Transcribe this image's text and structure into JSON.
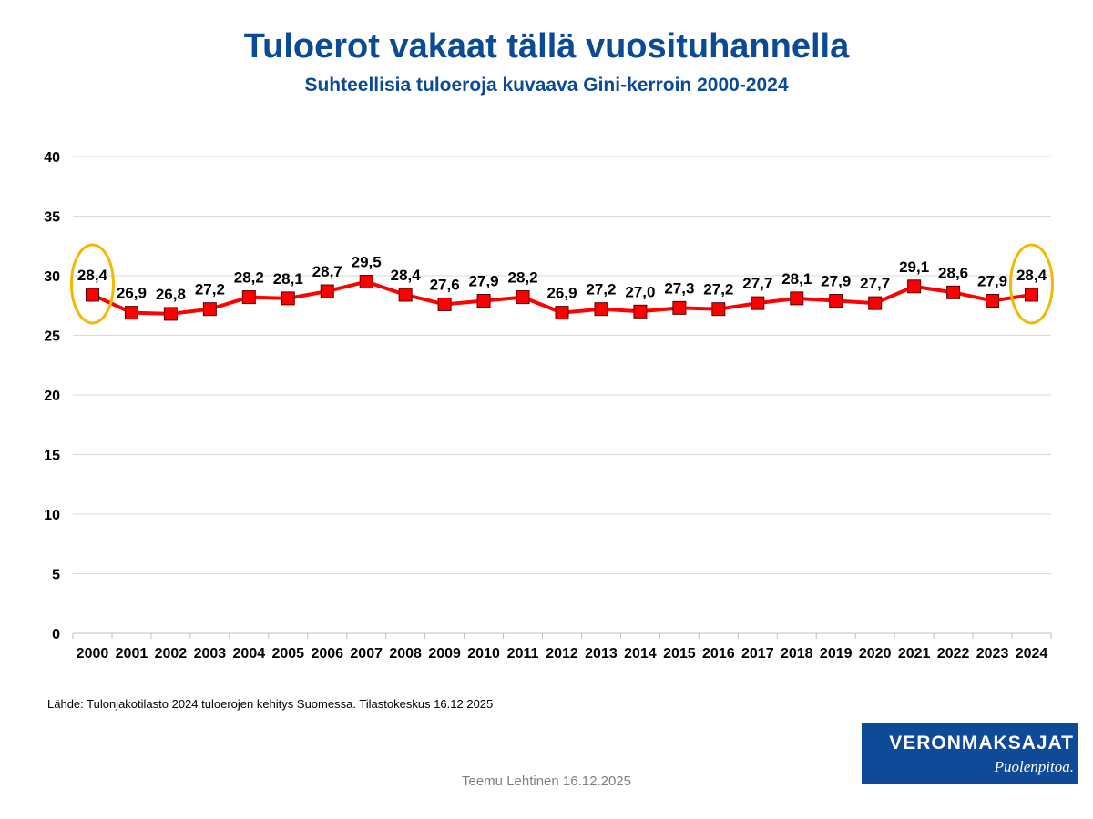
{
  "header": {
    "title": "Tuloerot vakaat tällä vuosituhannella",
    "subtitle": "Suhteellisia tuloeroja kuvaava Gini-kerroin 2000-2024"
  },
  "chart_data": {
    "type": "line",
    "x": [
      "2000",
      "2001",
      "2002",
      "2003",
      "2004",
      "2005",
      "2006",
      "2007",
      "2008",
      "2009",
      "2010",
      "2011",
      "2012",
      "2013",
      "2014",
      "2015",
      "2016",
      "2017",
      "2018",
      "2019",
      "2020",
      "2021",
      "2022",
      "2023",
      "2024"
    ],
    "series": [
      {
        "values": [
          28.4,
          26.9,
          26.8,
          27.2,
          28.2,
          28.1,
          28.7,
          29.5,
          28.4,
          27.6,
          27.9,
          28.2,
          26.9,
          27.2,
          27.0,
          27.3,
          27.2,
          27.7,
          28.1,
          27.9,
          27.7,
          29.1,
          28.6,
          27.9,
          28.4
        ],
        "labels": [
          "28,4",
          "26,9",
          "26,8",
          "27,2",
          "28,2",
          "28,1",
          "28,7",
          "29,5",
          "28,4",
          "27,6",
          "27,9",
          "28,2",
          "26,9",
          "27,2",
          "27,0",
          "27,3",
          "27,2",
          "27,7",
          "28,1",
          "27,9",
          "27,7",
          "29,1",
          "28,6",
          "27,9",
          "28,4"
        ],
        "line_color": "#ff0000",
        "marker_color": "#ff0000",
        "marker": "square"
      }
    ],
    "ylim": [
      0,
      40
    ],
    "yticks": [
      "0",
      "5",
      "10",
      "15",
      "20",
      "25",
      "30",
      "35",
      "40"
    ],
    "grid": true,
    "highlighted_points": [
      "2000",
      "2024"
    ],
    "highlight_color": "#f5b800"
  },
  "source_note": "Lähde: Tulonjakotilasto 2024 tuloerojen kehitys Suomessa. Tilastokeskus 16.12.2025",
  "logo": {
    "name": "VERONMAKSAJAT",
    "slogan": "Puolenpitoa."
  },
  "footer": "Teemu Lehtinen  16.12.2025"
}
